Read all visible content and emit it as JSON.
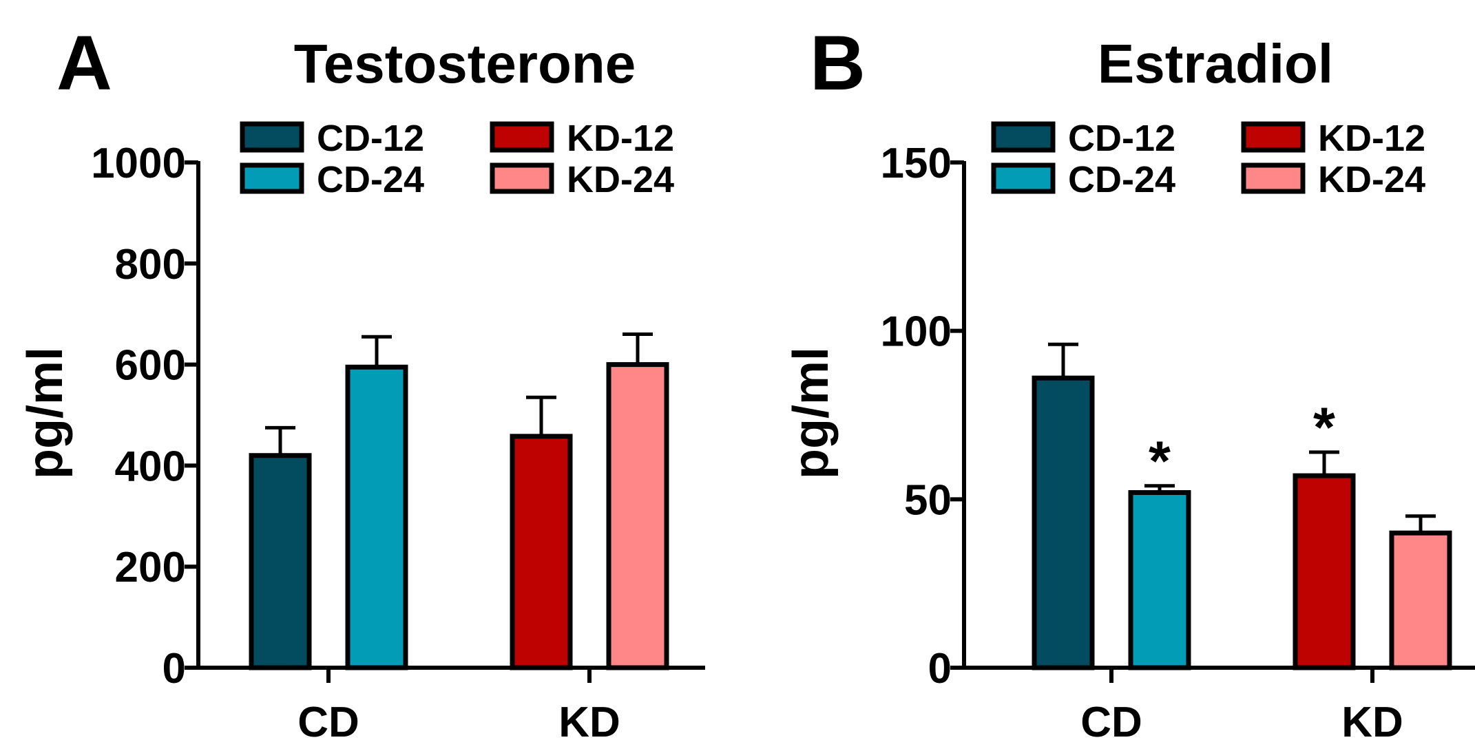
{
  "figure": {
    "colors": {
      "CD-12": "#034b5e",
      "CD-24": "#039cb6",
      "KD-12": "#be0202",
      "KD-24": "#ff8787"
    }
  },
  "chart_data": [
    {
      "panel_label": "A",
      "type": "bar",
      "title": "Testosterone",
      "xlabel": "",
      "ylabel": "pg/ml",
      "ylim": [
        0,
        1000
      ],
      "yticks": [
        0,
        200,
        400,
        600,
        800,
        1000
      ],
      "groups": [
        "CD",
        "KD"
      ],
      "legend": [
        "CD-12",
        "CD-24",
        "KD-12",
        "KD-24"
      ],
      "series": [
        {
          "name": "CD-12",
          "group": "CD",
          "value": 420,
          "error": 55,
          "sig": ""
        },
        {
          "name": "CD-24",
          "group": "CD",
          "value": 595,
          "error": 60,
          "sig": ""
        },
        {
          "name": "KD-12",
          "group": "KD",
          "value": 458,
          "error": 77,
          "sig": ""
        },
        {
          "name": "KD-24",
          "group": "KD",
          "value": 600,
          "error": 60,
          "sig": ""
        }
      ]
    },
    {
      "panel_label": "B",
      "type": "bar",
      "title": "Estradiol",
      "xlabel": "",
      "ylabel": "pg/ml",
      "ylim": [
        0,
        150
      ],
      "yticks": [
        0,
        50,
        100,
        150
      ],
      "groups": [
        "CD",
        "KD"
      ],
      "legend": [
        "CD-12",
        "CD-24",
        "KD-12",
        "KD-24"
      ],
      "series": [
        {
          "name": "CD-12",
          "group": "CD",
          "value": 86,
          "error": 10,
          "sig": ""
        },
        {
          "name": "CD-24",
          "group": "CD",
          "value": 52,
          "error": 2,
          "sig": "*"
        },
        {
          "name": "KD-12",
          "group": "KD",
          "value": 57,
          "error": 7,
          "sig": "*"
        },
        {
          "name": "KD-24",
          "group": "KD",
          "value": 40,
          "error": 5,
          "sig": ""
        }
      ]
    }
  ]
}
